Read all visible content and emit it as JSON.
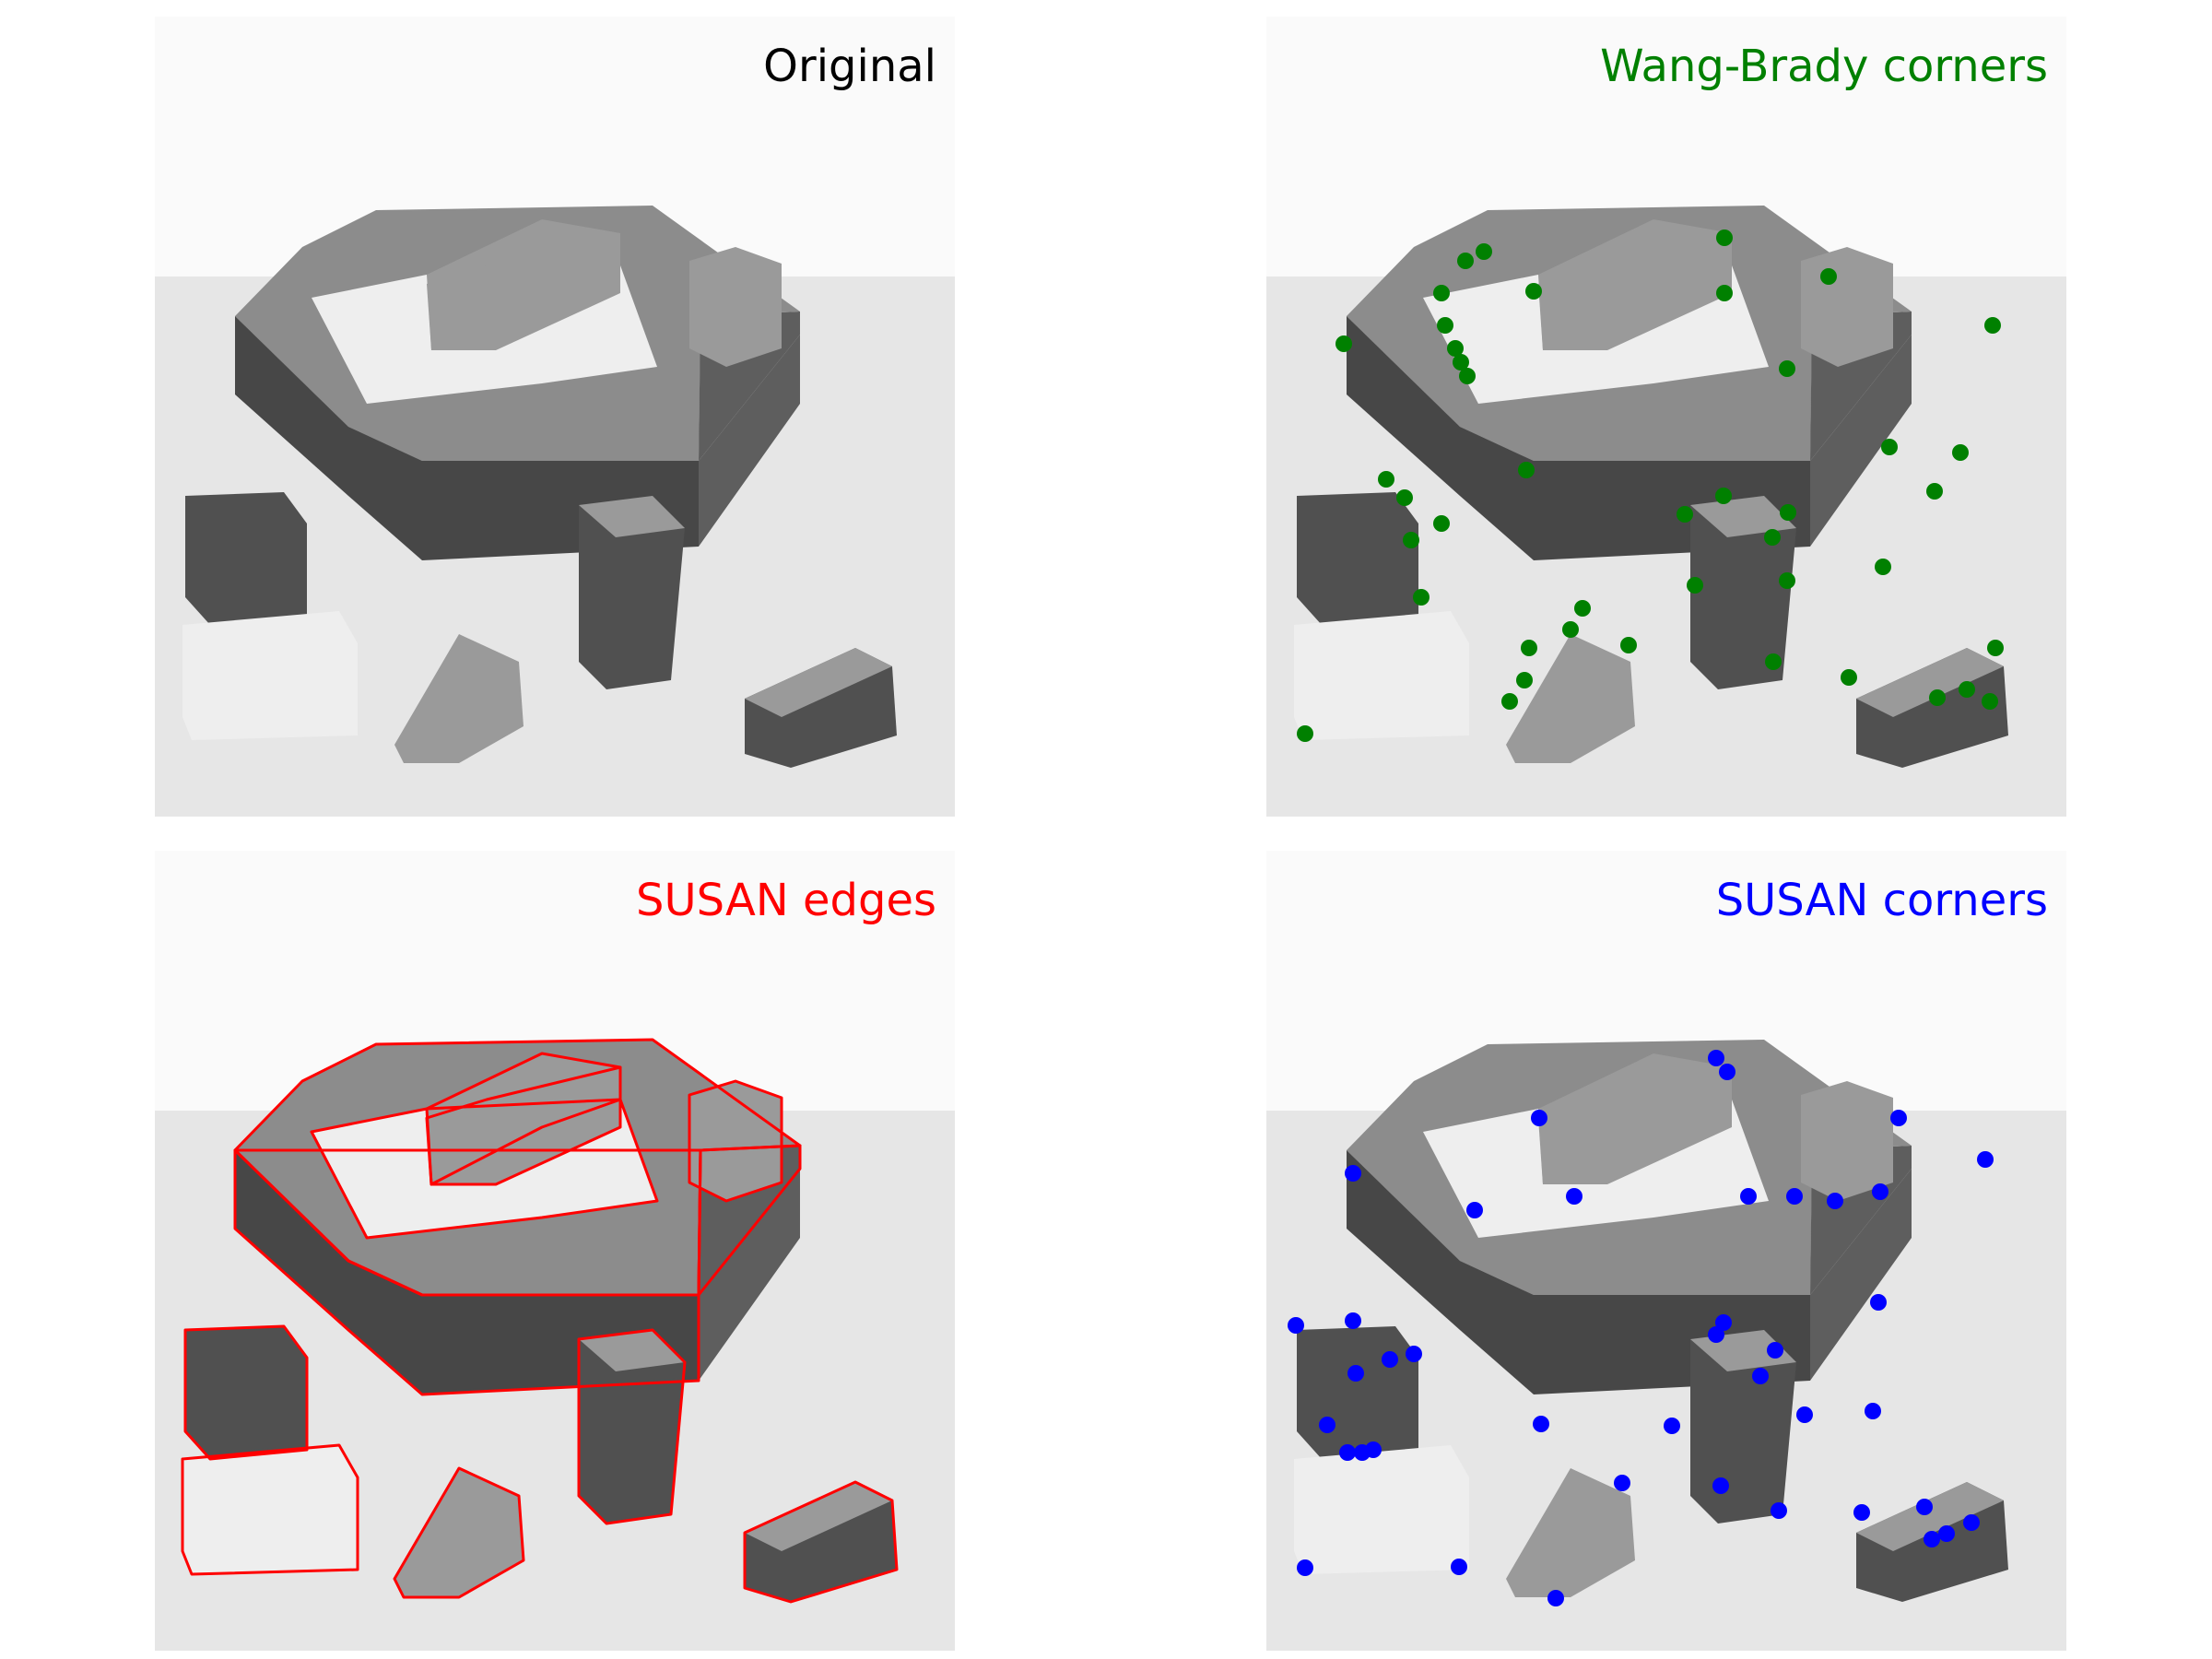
{
  "panels": [
    {
      "id": "tl",
      "title": "Original",
      "title_color": "#000000"
    },
    {
      "id": "tr",
      "title": "Wang-Brady corners",
      "title_color": "#008000",
      "marker": "dot",
      "marker_color": "#008000"
    },
    {
      "id": "bl",
      "title": "SUSAN edges",
      "title_color": "#ff0000",
      "overlay": "edges",
      "overlay_color": "#ff0000"
    },
    {
      "id": "br",
      "title": "SUSAN corners",
      "title_color": "#0000ff",
      "marker": "dot",
      "marker_color": "#0000ff"
    }
  ],
  "colors": {
    "wall": "#fafafa",
    "table": "#e6e6e6",
    "hex_top": "#8c8c8c",
    "hex_front": "#474747",
    "hex_right": "#5e5e5e",
    "plate": "#eeeeee",
    "block": "#9a9a9a",
    "dark_block": "#505050"
  }
}
